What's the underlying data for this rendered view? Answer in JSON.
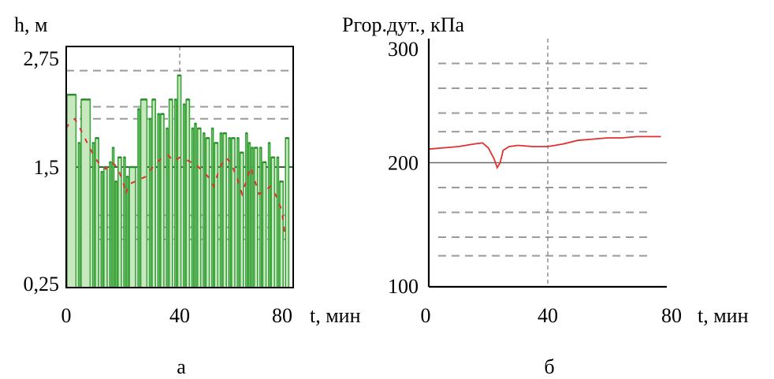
{
  "colors": {
    "fill_bars": "#c8e8c0",
    "bar_edge": "#3aa33a",
    "red": "#e03030",
    "grid": "#9a9a9a",
    "axis": "#000000"
  },
  "chart_data": [
    {
      "type": "bar",
      "ylabel": "h, м",
      "xlabel": "t, мин",
      "caption": "а",
      "xlim": [
        0,
        80
      ],
      "ylim": [
        0.25,
        2.75
      ],
      "ytick_labels": [
        "2,75",
        "1,5",
        "0,25"
      ],
      "ytick_values": [
        2.75,
        1.5,
        0.25
      ],
      "xtick_labels": [
        "0",
        "40",
        "80"
      ],
      "xtick_values": [
        0,
        40,
        80
      ],
      "reference_line": 1.5,
      "series": [
        {
          "x": [
            0,
            4,
            5,
            9,
            10,
            12,
            13,
            15,
            16,
            17,
            18,
            20,
            21,
            22,
            25,
            26,
            29,
            30,
            32,
            33,
            35,
            36,
            38,
            39,
            41,
            42,
            44,
            45,
            46,
            48,
            49,
            51,
            52,
            54,
            55,
            57,
            58,
            60,
            61,
            63,
            64,
            65,
            66,
            68,
            69,
            71,
            72,
            74,
            75,
            77
          ],
          "values": [
            2.25,
            1.75,
            2.2,
            1.75,
            1.8,
            1.45,
            1.5,
            1.55,
            1.7,
            1.35,
            1.6,
            1.6,
            1.4,
            1.5,
            2.1,
            2.2,
            2.0,
            2.2,
            2.05,
            2.05,
            1.9,
            2.2,
            2.2,
            2.45,
            2.15,
            2.2,
            1.9,
            1.95,
            1.9,
            1.85,
            1.8,
            1.9,
            1.75,
            1.85,
            1.85,
            1.8,
            1.8,
            1.8,
            1.65,
            1.85,
            1.75,
            1.7,
            1.7,
            1.7,
            1.55,
            1.75,
            1.6,
            1.6,
            1.35,
            1.8
          ]
        },
        {
          "x": [
            0,
            1,
            2,
            3,
            4,
            10,
            12,
            14,
            16,
            18,
            20,
            21,
            22,
            28,
            30,
            32,
            34,
            36,
            38,
            40,
            42,
            44,
            46,
            50,
            52,
            54,
            56,
            58,
            60,
            62,
            65,
            66,
            68,
            70,
            72,
            74,
            76,
            77
          ],
          "values": [
            1.9,
            1.95,
            1.98,
            2.0,
            1.95,
            1.6,
            1.52,
            1.48,
            1.55,
            1.5,
            1.35,
            1.22,
            1.32,
            1.4,
            1.48,
            1.55,
            1.6,
            1.62,
            1.56,
            1.6,
            1.58,
            1.55,
            1.52,
            1.4,
            1.3,
            1.48,
            1.6,
            1.55,
            1.4,
            1.22,
            1.5,
            1.4,
            1.22,
            1.25,
            1.3,
            1.2,
            1.05,
            0.8
          ]
        }
      ]
    },
    {
      "type": "line",
      "ylabel": "Pгор.дут., кПа",
      "xlabel": "t, мин",
      "caption": "б",
      "xlim": [
        0,
        80
      ],
      "ylim": [
        100,
        300
      ],
      "ytick_labels": [
        "300",
        "200",
        "100"
      ],
      "ytick_values": [
        300,
        200,
        100
      ],
      "xtick_labels": [
        "0",
        "40",
        "80"
      ],
      "xtick_values": [
        0,
        40,
        80
      ],
      "reference_line": 200,
      "series": [
        {
          "x": [
            0,
            5,
            10,
            15,
            18,
            20,
            22,
            23,
            24,
            25,
            27,
            30,
            35,
            40,
            45,
            50,
            55,
            60,
            65,
            70,
            75,
            78
          ],
          "values": [
            211,
            212,
            213,
            215,
            216,
            212,
            203,
            196,
            200,
            210,
            213,
            214,
            213,
            213,
            215,
            218,
            219,
            220,
            220,
            221,
            221,
            221
          ]
        }
      ]
    }
  ]
}
